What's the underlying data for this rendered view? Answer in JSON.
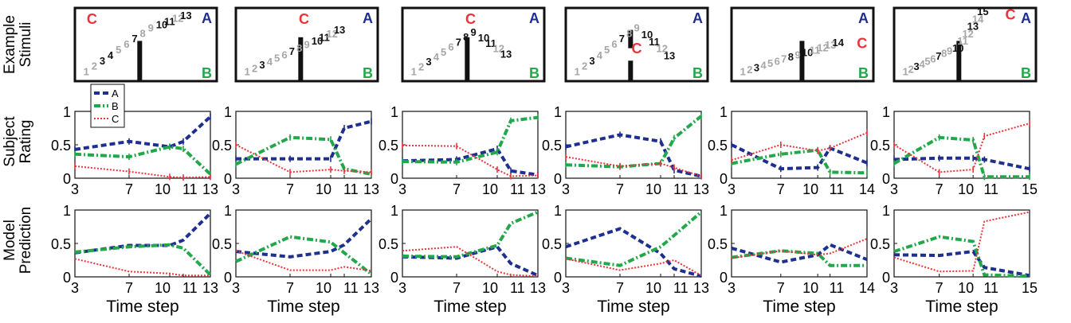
{
  "row_labels": {
    "stimuli": [
      "Example",
      "Stimuli"
    ],
    "rating": [
      "Subject",
      "Rating"
    ],
    "prediction": [
      "Model",
      "Prediction"
    ]
  },
  "xlabel": "Time step",
  "legend": [
    "A",
    "B",
    "C"
  ],
  "colors": {
    "A": "#1f2f8f",
    "B": "#22a84a",
    "C": "#e8343a",
    "gray": "#a6a6a6",
    "black": "#111111"
  },
  "stim_letters": {
    "A": "A",
    "B": "B",
    "C": "C"
  },
  "stimuli": [
    {
      "numbers": [
        {
          "t": "1",
          "c": "gray"
        },
        {
          "t": "2",
          "c": "gray"
        },
        {
          "t": "3",
          "c": "black"
        },
        {
          "t": "4",
          "c": "black"
        },
        {
          "t": "5",
          "c": "gray"
        },
        {
          "t": "6",
          "c": "gray"
        },
        {
          "t": "7",
          "c": "black"
        },
        {
          "t": "8",
          "c": "gray"
        },
        {
          "t": "9",
          "c": "gray"
        },
        {
          "t": "10",
          "c": "black"
        },
        {
          "t": "11",
          "c": "black"
        },
        {
          "t": "12",
          "c": "gray"
        },
        {
          "t": "13",
          "c": "black"
        }
      ]
    },
    {
      "numbers": [
        {
          "t": "1",
          "c": "gray"
        },
        {
          "t": "2",
          "c": "gray"
        },
        {
          "t": "3",
          "c": "black"
        },
        {
          "t": "4",
          "c": "gray"
        },
        {
          "t": "5",
          "c": "gray"
        },
        {
          "t": "6",
          "c": "gray"
        },
        {
          "t": "7",
          "c": "black"
        },
        {
          "t": "8",
          "c": "gray"
        },
        {
          "t": "9",
          "c": "gray"
        },
        {
          "t": "10",
          "c": "black"
        },
        {
          "t": "11",
          "c": "black"
        },
        {
          "t": "12",
          "c": "gray"
        },
        {
          "t": "13",
          "c": "black"
        }
      ]
    },
    {
      "numbers": [
        {
          "t": "1",
          "c": "gray"
        },
        {
          "t": "2",
          "c": "gray"
        },
        {
          "t": "3",
          "c": "black"
        },
        {
          "t": "4",
          "c": "gray"
        },
        {
          "t": "5",
          "c": "gray"
        },
        {
          "t": "6",
          "c": "gray"
        },
        {
          "t": "7",
          "c": "black"
        },
        {
          "t": "8",
          "c": "black"
        },
        {
          "t": "9",
          "c": "black"
        },
        {
          "t": "10",
          "c": "black"
        },
        {
          "t": "11",
          "c": "black"
        },
        {
          "t": "12",
          "c": "gray"
        },
        {
          "t": "13",
          "c": "black"
        }
      ]
    },
    {
      "numbers": [
        {
          "t": "1",
          "c": "gray"
        },
        {
          "t": "2",
          "c": "gray"
        },
        {
          "t": "3",
          "c": "black"
        },
        {
          "t": "4",
          "c": "gray"
        },
        {
          "t": "5",
          "c": "gray"
        },
        {
          "t": "6",
          "c": "gray"
        },
        {
          "t": "7",
          "c": "black"
        },
        {
          "t": "8",
          "c": "gray"
        },
        {
          "t": "9",
          "c": "gray"
        },
        {
          "t": "10",
          "c": "black"
        },
        {
          "t": "11",
          "c": "black"
        },
        {
          "t": "12",
          "c": "gray"
        },
        {
          "t": "13",
          "c": "black"
        }
      ]
    },
    {
      "numbers": [
        {
          "t": "1",
          "c": "gray"
        },
        {
          "t": "2",
          "c": "gray"
        },
        {
          "t": "3",
          "c": "black"
        },
        {
          "t": "4",
          "c": "gray"
        },
        {
          "t": "5",
          "c": "gray"
        },
        {
          "t": "6",
          "c": "gray"
        },
        {
          "t": "7",
          "c": "gray"
        },
        {
          "t": "8",
          "c": "black"
        },
        {
          "t": "9",
          "c": "gray"
        },
        {
          "t": "10",
          "c": "black"
        },
        {
          "t": "11",
          "c": "gray"
        },
        {
          "t": "12",
          "c": "gray"
        },
        {
          "t": "13",
          "c": "gray"
        },
        {
          "t": "14",
          "c": "black"
        }
      ]
    },
    {
      "numbers": [
        {
          "t": "1",
          "c": "gray"
        },
        {
          "t": "2",
          "c": "gray"
        },
        {
          "t": "3",
          "c": "black"
        },
        {
          "t": "4",
          "c": "gray"
        },
        {
          "t": "5",
          "c": "gray"
        },
        {
          "t": "6",
          "c": "gray"
        },
        {
          "t": "7",
          "c": "black"
        },
        {
          "t": "8",
          "c": "gray"
        },
        {
          "t": "9",
          "c": "gray"
        },
        {
          "t": "10",
          "c": "black"
        },
        {
          "t": "11",
          "c": "gray"
        },
        {
          "t": "12",
          "c": "gray"
        },
        {
          "t": "13",
          "c": "black"
        },
        {
          "t": "14",
          "c": "gray"
        },
        {
          "t": "15",
          "c": "black"
        }
      ]
    }
  ],
  "chart_data": [
    {
      "type": "line",
      "row": "Subject Rating",
      "column": 1,
      "x": [
        3,
        7,
        10,
        11,
        13
      ],
      "ylim": [
        0,
        1
      ],
      "xticks": [
        3,
        7,
        10,
        11,
        13
      ],
      "yticks": [
        0,
        0.5,
        1
      ],
      "series": [
        {
          "name": "A",
          "values": [
            0.43,
            0.55,
            0.47,
            0.55,
            0.92
          ]
        },
        {
          "name": "B",
          "values": [
            0.36,
            0.32,
            0.47,
            0.44,
            0.06
          ]
        },
        {
          "name": "C",
          "values": [
            0.18,
            0.1,
            0.02,
            0.01,
            0.02
          ]
        }
      ]
    },
    {
      "type": "line",
      "row": "Subject Rating",
      "column": 2,
      "x": [
        3,
        7,
        10,
        11,
        13
      ],
      "ylim": [
        0,
        1
      ],
      "xticks": [
        3,
        7,
        10,
        11,
        13
      ],
      "yticks": [
        0,
        0.5,
        1
      ],
      "series": [
        {
          "name": "A",
          "values": [
            0.29,
            0.29,
            0.29,
            0.75,
            0.85
          ]
        },
        {
          "name": "B",
          "values": [
            0.21,
            0.61,
            0.58,
            0.14,
            0.06
          ]
        },
        {
          "name": "C",
          "values": [
            0.5,
            0.09,
            0.13,
            0.11,
            0.09
          ]
        }
      ]
    },
    {
      "type": "line",
      "row": "Subject Rating",
      "column": 3,
      "x": [
        3,
        7,
        10,
        11,
        13
      ],
      "ylim": [
        0,
        1
      ],
      "xticks": [
        3,
        7,
        10,
        11,
        13
      ],
      "yticks": [
        0,
        0.5,
        1
      ],
      "series": [
        {
          "name": "A",
          "values": [
            0.26,
            0.28,
            0.44,
            0.11,
            0.05
          ]
        },
        {
          "name": "B",
          "values": [
            0.25,
            0.24,
            0.39,
            0.86,
            0.91
          ]
        },
        {
          "name": "C",
          "values": [
            0.49,
            0.48,
            0.13,
            0.03,
            0.04
          ]
        }
      ]
    },
    {
      "type": "line",
      "row": "Subject Rating",
      "column": 4,
      "x": [
        3,
        7,
        10,
        11,
        13
      ],
      "ylim": [
        0,
        1
      ],
      "xticks": [
        3,
        7,
        10,
        11,
        13
      ],
      "yticks": [
        0,
        0.5,
        1
      ],
      "series": [
        {
          "name": "A",
          "values": [
            0.47,
            0.65,
            0.55,
            0.12,
            0.03
          ]
        },
        {
          "name": "B",
          "values": [
            0.2,
            0.17,
            0.22,
            0.6,
            0.93
          ]
        },
        {
          "name": "C",
          "values": [
            0.32,
            0.18,
            0.22,
            0.16,
            0.03
          ]
        }
      ]
    },
    {
      "type": "line",
      "row": "Subject Rating",
      "column": 5,
      "x": [
        3,
        7,
        10,
        11,
        14
      ],
      "ylim": [
        0,
        1
      ],
      "xticks": [
        3,
        7,
        10,
        11,
        14
      ],
      "yticks": [
        0,
        0.5,
        1
      ],
      "series": [
        {
          "name": "A",
          "values": [
            0.5,
            0.14,
            0.16,
            0.45,
            0.23
          ]
        },
        {
          "name": "B",
          "values": [
            0.22,
            0.36,
            0.42,
            0.09,
            0.08
          ]
        },
        {
          "name": "C",
          "values": [
            0.27,
            0.5,
            0.41,
            0.45,
            0.68
          ]
        }
      ]
    },
    {
      "type": "line",
      "row": "Subject Rating",
      "column": 6,
      "x": [
        3,
        7,
        10,
        11,
        15
      ],
      "ylim": [
        0,
        1
      ],
      "xticks": [
        3,
        7,
        10,
        11,
        15
      ],
      "yticks": [
        0,
        0.5,
        1
      ],
      "series": [
        {
          "name": "A",
          "values": [
            0.28,
            0.3,
            0.3,
            0.28,
            0.14
          ]
        },
        {
          "name": "B",
          "values": [
            0.22,
            0.61,
            0.57,
            0.02,
            0.02
          ]
        },
        {
          "name": "C",
          "values": [
            0.5,
            0.09,
            0.13,
            0.63,
            0.82
          ]
        }
      ]
    },
    {
      "type": "line",
      "row": "Model Prediction",
      "column": 1,
      "x": [
        3,
        7,
        10,
        11,
        13
      ],
      "ylim": [
        0,
        1
      ],
      "xticks": [
        3,
        7,
        10,
        11,
        13
      ],
      "yticks": [
        0,
        0.5,
        1
      ],
      "series": [
        {
          "name": "A",
          "values": [
            0.36,
            0.47,
            0.47,
            0.55,
            0.95
          ]
        },
        {
          "name": "B",
          "values": [
            0.37,
            0.45,
            0.48,
            0.43,
            0.03
          ]
        },
        {
          "name": "C",
          "values": [
            0.27,
            0.08,
            0.05,
            0.02,
            0.02
          ]
        }
      ]
    },
    {
      "type": "line",
      "row": "Model Prediction",
      "column": 2,
      "x": [
        3,
        7,
        10,
        11,
        13
      ],
      "ylim": [
        0,
        1
      ],
      "xticks": [
        3,
        7,
        10,
        11,
        13
      ],
      "yticks": [
        0,
        0.5,
        1
      ],
      "series": [
        {
          "name": "A",
          "values": [
            0.38,
            0.3,
            0.38,
            0.48,
            0.87
          ]
        },
        {
          "name": "B",
          "values": [
            0.23,
            0.6,
            0.52,
            0.36,
            0.04
          ]
        },
        {
          "name": "C",
          "values": [
            0.39,
            0.1,
            0.1,
            0.15,
            0.09
          ]
        }
      ]
    },
    {
      "type": "line",
      "row": "Model Prediction",
      "column": 3,
      "x": [
        3,
        7,
        10,
        11,
        13
      ],
      "ylim": [
        0,
        1
      ],
      "xticks": [
        3,
        7,
        10,
        11,
        13
      ],
      "yticks": [
        0,
        0.5,
        1
      ],
      "series": [
        {
          "name": "A",
          "values": [
            0.3,
            0.28,
            0.45,
            0.2,
            0.02
          ]
        },
        {
          "name": "B",
          "values": [
            0.31,
            0.3,
            0.47,
            0.8,
            0.97
          ]
        },
        {
          "name": "C",
          "values": [
            0.39,
            0.45,
            0.08,
            0.03,
            0.01
          ]
        }
      ]
    },
    {
      "type": "line",
      "row": "Model Prediction",
      "column": 4,
      "x": [
        3,
        7,
        10,
        11,
        13
      ],
      "ylim": [
        0,
        1
      ],
      "xticks": [
        3,
        7,
        10,
        11,
        13
      ],
      "yticks": [
        0,
        0.5,
        1
      ],
      "series": [
        {
          "name": "A",
          "values": [
            0.45,
            0.72,
            0.35,
            0.12,
            0.01
          ]
        },
        {
          "name": "B",
          "values": [
            0.28,
            0.17,
            0.45,
            0.62,
            0.97
          ]
        },
        {
          "name": "C",
          "values": [
            0.27,
            0.1,
            0.2,
            0.25,
            0.02
          ]
        }
      ]
    },
    {
      "type": "line",
      "row": "Model Prediction",
      "column": 5,
      "x": [
        3,
        7,
        10,
        11,
        14
      ],
      "ylim": [
        0,
        1
      ],
      "xticks": [
        3,
        7,
        10,
        11,
        14
      ],
      "yticks": [
        0,
        0.5,
        1
      ],
      "series": [
        {
          "name": "A",
          "values": [
            0.43,
            0.22,
            0.33,
            0.48,
            0.26
          ]
        },
        {
          "name": "B",
          "values": [
            0.29,
            0.39,
            0.35,
            0.17,
            0.17
          ]
        },
        {
          "name": "C",
          "values": [
            0.28,
            0.39,
            0.33,
            0.35,
            0.57
          ]
        }
      ]
    },
    {
      "type": "line",
      "row": "Model Prediction",
      "column": 6,
      "x": [
        3,
        7,
        10,
        11,
        15
      ],
      "ylim": [
        0,
        1
      ],
      "xticks": [
        3,
        7,
        10,
        11,
        15
      ],
      "yticks": [
        0,
        0.5,
        1
      ],
      "series": [
        {
          "name": "A",
          "values": [
            0.33,
            0.32,
            0.38,
            0.14,
            0.02
          ]
        },
        {
          "name": "B",
          "values": [
            0.38,
            0.6,
            0.53,
            0.03,
            0.01
          ]
        },
        {
          "name": "C",
          "values": [
            0.29,
            0.08,
            0.09,
            0.83,
            0.97
          ]
        }
      ]
    }
  ]
}
